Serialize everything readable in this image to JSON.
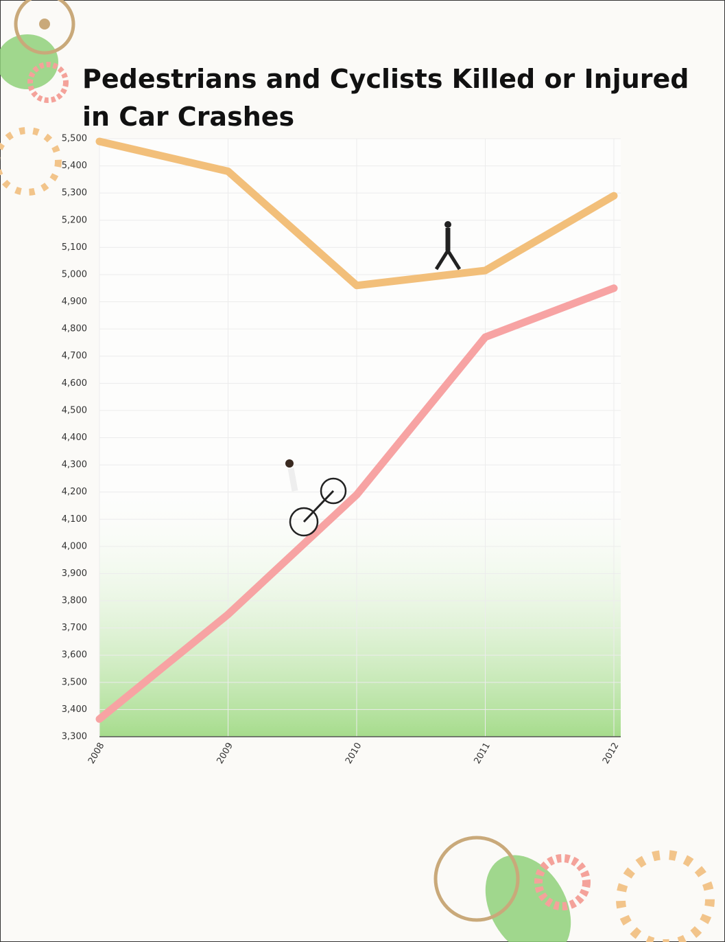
{
  "chart_data": {
    "type": "line",
    "title": [
      "Pedestrians and Cyclists Killed or Injured",
      "in Car Crashes"
    ],
    "categories": [
      "2008",
      "2009",
      "2010",
      "2011",
      "2012"
    ],
    "series": [
      {
        "color": "#f2bf7a",
        "values": [
          5490,
          5380,
          4960,
          5015,
          5290
        ]
      },
      {
        "color": "#f7a3a3",
        "values": [
          3365,
          3750,
          4190,
          4770,
          4950
        ]
      }
    ],
    "ylim": [
      3300,
      5500
    ],
    "yticks": [
      {
        "value": 3300,
        "label": "3,300"
      },
      {
        "value": 3400,
        "label": "3,400"
      },
      {
        "value": 3500,
        "label": "3,500"
      },
      {
        "value": 3600,
        "label": "3,600"
      },
      {
        "value": 3700,
        "label": "3,700"
      },
      {
        "value": 3800,
        "label": "3,800"
      },
      {
        "value": 3900,
        "label": "3,900"
      },
      {
        "value": 4000,
        "label": "4,000"
      },
      {
        "value": 4100,
        "label": "4,100"
      },
      {
        "value": 4200,
        "label": "4,200"
      },
      {
        "value": 4300,
        "label": "4,300"
      },
      {
        "value": 4400,
        "label": "4,400"
      },
      {
        "value": 4500,
        "label": "4,500"
      },
      {
        "value": 4600,
        "label": "4,600"
      },
      {
        "value": 4700,
        "label": "4,700"
      },
      {
        "value": 4800,
        "label": "4,800"
      },
      {
        "value": 4900,
        "label": "4,900"
      },
      {
        "value": 5000,
        "label": "5,000"
      },
      {
        "value": 5100,
        "label": "5,100"
      },
      {
        "value": 5200,
        "label": "5,200"
      },
      {
        "value": 5300,
        "label": "5,300"
      },
      {
        "value": 5400,
        "label": "5,400"
      },
      {
        "value": 5500,
        "label": "5,500"
      }
    ],
    "grid": true
  }
}
